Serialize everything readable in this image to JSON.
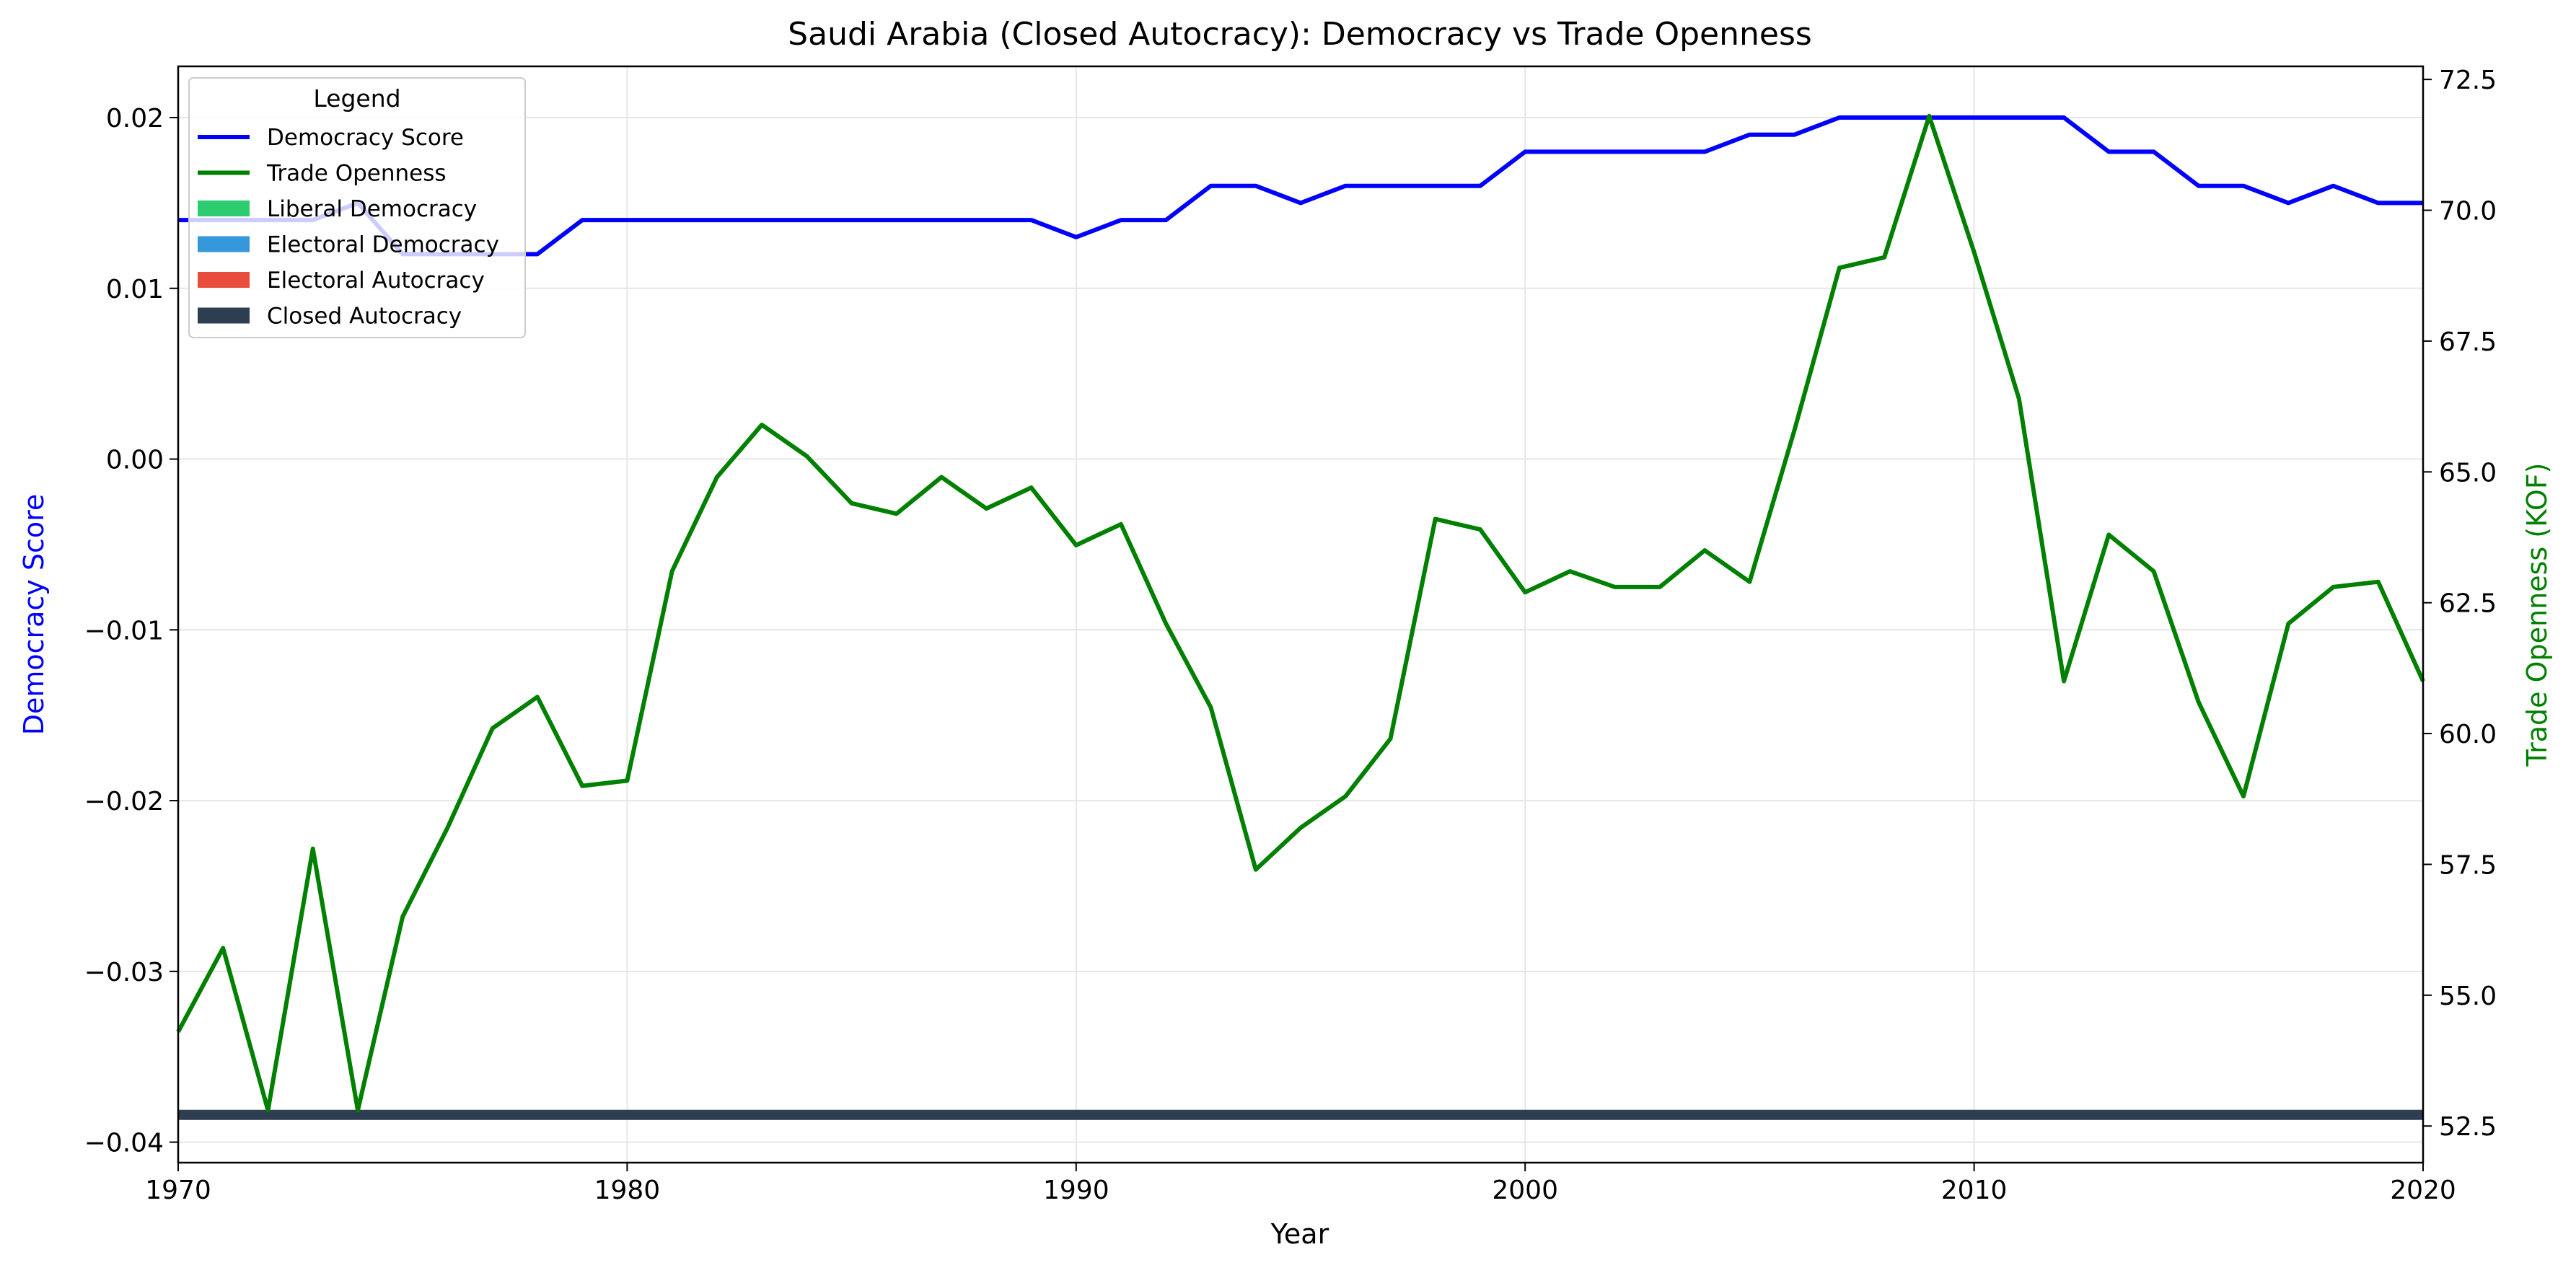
{
  "chart_data": {
    "type": "line",
    "title": "Saudi Arabia (Closed Autocracy): Democracy vs Trade Openness",
    "xlabel": "Year",
    "ylabel_left": "Democracy Score",
    "ylabel_right": "Trade Openness (KOF)",
    "xlim": [
      1970,
      2020
    ],
    "ylim_left": [
      -0.0412,
      0.023
    ],
    "ylim_right": [
      51.8,
      72.75
    ],
    "x_ticks": [
      1970,
      1980,
      1990,
      2000,
      2010,
      2020
    ],
    "y_left_ticks": [
      -0.04,
      -0.03,
      -0.02,
      -0.01,
      0.0,
      0.01,
      0.02
    ],
    "y_left_tick_labels": [
      "−0.04",
      "−0.03",
      "−0.02",
      "−0.01",
      "0.00",
      "0.01",
      "0.02"
    ],
    "y_right_ticks": [
      52.5,
      55.0,
      57.5,
      60.0,
      62.5,
      65.0,
      67.5,
      70.0,
      72.5
    ],
    "y_right_tick_labels": [
      "52.5",
      "55.0",
      "57.5",
      "60.0",
      "62.5",
      "65.0",
      "67.5",
      "70.0",
      "72.5"
    ],
    "grid": true,
    "legend": {
      "title": "Legend",
      "placement": "top-left",
      "entries": [
        {
          "label": "Democracy Score",
          "kind": "line",
          "color": "#0000ff"
        },
        {
          "label": "Trade Openness",
          "kind": "line",
          "color": "#008000"
        },
        {
          "label": "Liberal Democracy",
          "kind": "patch",
          "color": "#2ecc71"
        },
        {
          "label": "Electoral Democracy",
          "kind": "patch",
          "color": "#3498db"
        },
        {
          "label": "Electoral Autocracy",
          "kind": "patch",
          "color": "#e74c3c"
        },
        {
          "label": "Closed Autocracy",
          "kind": "patch",
          "color": "#2c3e50"
        }
      ]
    },
    "regime_band": {
      "regime": "Closed Autocracy",
      "color": "#2c3e50",
      "from": 1970,
      "to": 2020
    },
    "series": [
      {
        "name": "Democracy Score",
        "axis": "left",
        "color": "#0000ff",
        "x": [
          1970,
          1971,
          1972,
          1973,
          1974,
          1975,
          1976,
          1977,
          1978,
          1979,
          1980,
          1981,
          1982,
          1983,
          1984,
          1985,
          1986,
          1987,
          1988,
          1989,
          1990,
          1991,
          1992,
          1993,
          1994,
          1995,
          1996,
          1997,
          1998,
          1999,
          2000,
          2001,
          2002,
          2003,
          2004,
          2005,
          2006,
          2007,
          2008,
          2009,
          2010,
          2011,
          2012,
          2013,
          2014,
          2015,
          2016,
          2017,
          2018,
          2019,
          2020
        ],
        "values": [
          0.014,
          0.014,
          0.014,
          0.014,
          0.015,
          0.012,
          0.012,
          0.012,
          0.012,
          0.014,
          0.014,
          0.014,
          0.014,
          0.014,
          0.014,
          0.014,
          0.014,
          0.014,
          0.014,
          0.014,
          0.013,
          0.014,
          0.014,
          0.016,
          0.016,
          0.015,
          0.016,
          0.016,
          0.016,
          0.016,
          0.018,
          0.018,
          0.018,
          0.018,
          0.018,
          0.019,
          0.019,
          0.02,
          0.02,
          0.02,
          0.02,
          0.02,
          0.02,
          0.018,
          0.018,
          0.016,
          0.016,
          0.015,
          0.016,
          0.015,
          0.015
        ]
      },
      {
        "name": "Trade Openness",
        "axis": "right",
        "color": "#008000",
        "x": [
          1970,
          1971,
          1972,
          1973,
          1974,
          1975,
          1976,
          1977,
          1978,
          1979,
          1980,
          1981,
          1982,
          1983,
          1984,
          1985,
          1986,
          1987,
          1988,
          1989,
          1990,
          1991,
          1992,
          1993,
          1994,
          1995,
          1996,
          1997,
          1998,
          1999,
          2000,
          2001,
          2002,
          2003,
          2004,
          2005,
          2006,
          2007,
          2008,
          2009,
          2010,
          2011,
          2012,
          2013,
          2014,
          2015,
          2016,
          2017,
          2018,
          2019,
          2020
        ],
        "values": [
          54.3,
          55.9,
          52.8,
          57.8,
          52.8,
          56.5,
          58.2,
          60.1,
          60.7,
          59.0,
          59.1,
          63.1,
          64.9,
          65.9,
          65.3,
          64.4,
          64.2,
          64.9,
          64.3,
          64.7,
          63.6,
          64.0,
          62.1,
          60.5,
          57.4,
          58.2,
          58.8,
          59.9,
          64.1,
          63.9,
          62.7,
          63.1,
          62.8,
          62.8,
          63.5,
          62.9,
          65.8,
          68.9,
          69.1,
          71.8,
          69.2,
          66.4,
          61.0,
          63.8,
          63.1,
          60.6,
          58.8,
          62.1,
          62.8,
          62.9,
          61.0
        ]
      }
    ]
  }
}
